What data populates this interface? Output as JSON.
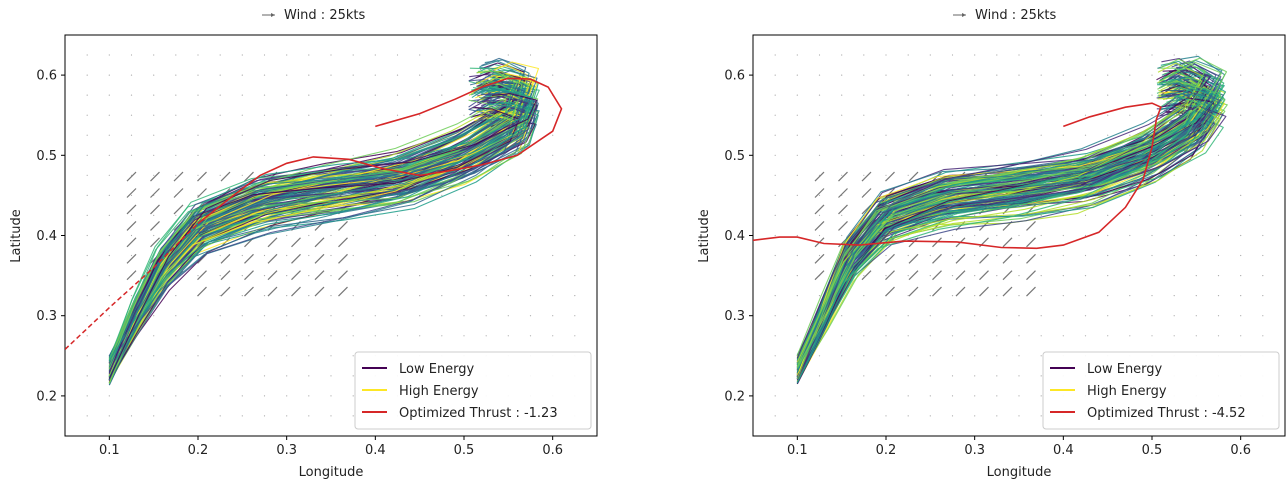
{
  "chart_data": [
    {
      "type": "line",
      "title": "",
      "wind_key_label": "Wind : 25kts",
      "xlabel": "Longitude",
      "ylabel": "Latitude",
      "xlim": [
        0.05,
        0.65
      ],
      "ylim": [
        0.15,
        0.65
      ],
      "xticks": [
        "0.1",
        "0.2",
        "0.3",
        "0.4",
        "0.5",
        "0.6"
      ],
      "yticks": [
        "0.2",
        "0.3",
        "0.4",
        "0.5",
        "0.6"
      ],
      "grid": "dotted",
      "legend_position": "bottom-right",
      "legend": [
        {
          "label": "Low Energy",
          "color": "#440154"
        },
        {
          "label": "High Energy",
          "color": "#fde725"
        },
        {
          "label": "Optimized Thrust : -1.23",
          "color": "#d62728"
        }
      ],
      "wind_direction": "south-west to north-east",
      "wind_region": {
        "lon": [
          0.125,
          0.38
        ],
        "lat": [
          0.33,
          0.48
        ]
      },
      "ensemble": {
        "start": [
          0.1,
          0.232
        ],
        "path": [
          [
            0.1,
            0.232
          ],
          [
            0.13,
            0.3
          ],
          [
            0.16,
            0.36
          ],
          [
            0.2,
            0.41
          ],
          [
            0.27,
            0.44
          ],
          [
            0.35,
            0.455
          ],
          [
            0.43,
            0.47
          ],
          [
            0.5,
            0.5
          ],
          [
            0.56,
            0.54
          ],
          [
            0.57,
            0.57
          ],
          [
            0.54,
            0.58
          ],
          [
            0.52,
            0.575
          ]
        ]
      },
      "optimized": [
        [
          0.05,
          0.258
        ],
        [
          0.1,
          0.31
        ],
        [
          0.15,
          0.36
        ],
        [
          0.2,
          0.415
        ],
        [
          0.24,
          0.45
        ],
        [
          0.27,
          0.475
        ],
        [
          0.3,
          0.49
        ],
        [
          0.33,
          0.498
        ],
        [
          0.37,
          0.495
        ],
        [
          0.41,
          0.483
        ],
        [
          0.45,
          0.475
        ],
        [
          0.48,
          0.48
        ],
        [
          0.52,
          0.488
        ],
        [
          0.56,
          0.5
        ],
        [
          0.6,
          0.53
        ],
        [
          0.61,
          0.558
        ],
        [
          0.595,
          0.585
        ],
        [
          0.575,
          0.595
        ],
        [
          0.55,
          0.596
        ],
        [
          0.52,
          0.585
        ],
        [
          0.49,
          0.57
        ],
        [
          0.45,
          0.552
        ],
        [
          0.4,
          0.536
        ]
      ],
      "optimized_dashed_until_lon": 0.2
    },
    {
      "type": "line",
      "title": "",
      "wind_key_label": "Wind : 25kts",
      "xlabel": "Longitude",
      "ylabel": "Latitude",
      "xlim": [
        0.05,
        0.65
      ],
      "ylim": [
        0.15,
        0.65
      ],
      "xticks": [
        "0.1",
        "0.2",
        "0.3",
        "0.4",
        "0.5",
        "0.6"
      ],
      "yticks": [
        "0.2",
        "0.3",
        "0.4",
        "0.5",
        "0.6"
      ],
      "grid": "dotted",
      "legend_position": "bottom-right",
      "legend": [
        {
          "label": "Low Energy",
          "color": "#440154"
        },
        {
          "label": "High Energy",
          "color": "#fde725"
        },
        {
          "label": "Optimized Thrust : -4.52",
          "color": "#d62728"
        }
      ],
      "wind_direction": "north-east to south-west",
      "wind_region": {
        "lon": [
          0.125,
          0.38
        ],
        "lat": [
          0.33,
          0.48
        ]
      },
      "ensemble": {
        "start": [
          0.1,
          0.232
        ],
        "path": [
          [
            0.1,
            0.232
          ],
          [
            0.13,
            0.3
          ],
          [
            0.16,
            0.37
          ],
          [
            0.2,
            0.42
          ],
          [
            0.27,
            0.445
          ],
          [
            0.35,
            0.455
          ],
          [
            0.43,
            0.47
          ],
          [
            0.5,
            0.5
          ],
          [
            0.55,
            0.535
          ],
          [
            0.57,
            0.57
          ],
          [
            0.54,
            0.585
          ],
          [
            0.52,
            0.578
          ]
        ]
      },
      "optimized": [
        [
          0.05,
          0.394
        ],
        [
          0.08,
          0.398
        ],
        [
          0.1,
          0.398
        ],
        [
          0.13,
          0.39
        ],
        [
          0.17,
          0.388
        ],
        [
          0.22,
          0.393
        ],
        [
          0.28,
          0.392
        ],
        [
          0.33,
          0.385
        ],
        [
          0.37,
          0.384
        ],
        [
          0.4,
          0.388
        ],
        [
          0.44,
          0.404
        ],
        [
          0.47,
          0.435
        ],
        [
          0.49,
          0.47
        ],
        [
          0.5,
          0.51
        ],
        [
          0.505,
          0.545
        ],
        [
          0.51,
          0.56
        ],
        [
          0.5,
          0.565
        ],
        [
          0.47,
          0.56
        ],
        [
          0.43,
          0.548
        ],
        [
          0.4,
          0.536
        ]
      ],
      "optimized_dashed_until_lon": 0.0
    }
  ]
}
